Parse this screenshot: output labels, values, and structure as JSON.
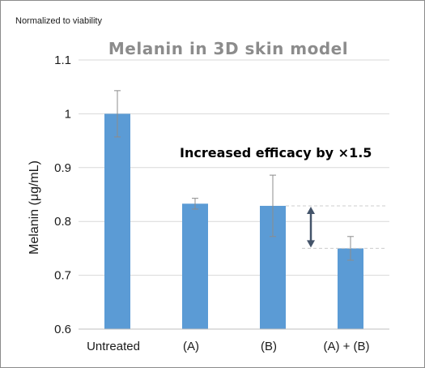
{
  "note": "Normalized to viability",
  "chart_data": {
    "type": "bar",
    "title": "Melanin in 3D skin model",
    "xlabel": "",
    "ylabel": "Melanin (μg/mL)",
    "categories": [
      "Untreated",
      "(A)",
      "(B)",
      "(A) + (B)"
    ],
    "values": [
      1.0,
      0.833,
      0.829,
      0.75
    ],
    "error": [
      0.043,
      0.01,
      0.057,
      0.022
    ],
    "ylim": [
      0.6,
      1.1
    ],
    "yticks": [
      0.6,
      0.7,
      0.8,
      0.9,
      1.0,
      1.1
    ],
    "ytick_labels": [
      "0.6",
      "0.7",
      "0.8",
      "0.9",
      "1",
      "1.1"
    ],
    "grid": true,
    "bar_color": "#5b9bd5",
    "annotation": "Increased efficacy by ×1.5",
    "comparison_from": 0.829,
    "comparison_to": 0.75
  }
}
